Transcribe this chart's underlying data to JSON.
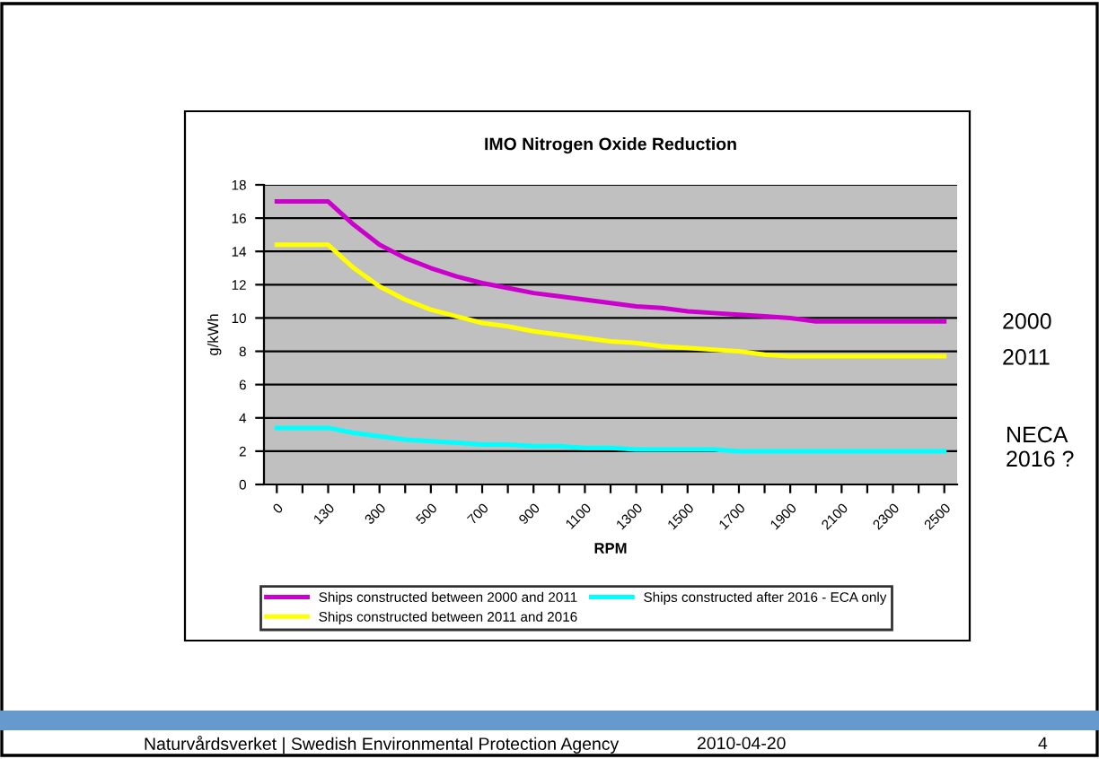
{
  "chart_data": {
    "type": "line",
    "title": "IMO Nitrogen Oxide Reduction",
    "xlabel": "RPM",
    "ylabel": "g/kWh",
    "categories": [
      "0",
      null,
      "130",
      null,
      "300",
      null,
      "500",
      null,
      "700",
      null,
      "900",
      null,
      "1100",
      null,
      "1300",
      null,
      "1500",
      null,
      "1700",
      null,
      "1900",
      null,
      "2100",
      null,
      "2300",
      null,
      "2500"
    ],
    "series": [
      {
        "name": "Ships constructed between 2000 and 2011",
        "color": "#cc00cc",
        "values": [
          17.0,
          17.0,
          17.0,
          15.6,
          14.4,
          13.6,
          13.0,
          12.5,
          12.1,
          11.8,
          11.5,
          11.3,
          11.1,
          10.9,
          10.7,
          10.6,
          10.4,
          10.3,
          10.2,
          10.1,
          10.0,
          9.8,
          9.8,
          9.8,
          9.8,
          9.8,
          9.8
        ]
      },
      {
        "name": "Ships constructed between 2011 and 2016",
        "color": "#ffff00",
        "values": [
          14.4,
          14.4,
          14.4,
          13.0,
          11.9,
          11.1,
          10.5,
          10.1,
          9.7,
          9.5,
          9.2,
          9.0,
          8.8,
          8.6,
          8.5,
          8.3,
          8.2,
          8.1,
          8.0,
          7.8,
          7.7,
          7.7,
          7.7,
          7.7,
          7.7,
          7.7,
          7.7
        ]
      },
      {
        "name": "Ships constructed after 2016 - ECA only",
        "color": "#00ffff",
        "values": [
          3.4,
          3.4,
          3.4,
          3.1,
          2.9,
          2.7,
          2.6,
          2.5,
          2.4,
          2.4,
          2.3,
          2.3,
          2.2,
          2.2,
          2.1,
          2.1,
          2.1,
          2.1,
          2.0,
          2.0,
          2.0,
          2.0,
          2.0,
          2.0,
          2.0,
          2.0,
          2.0
        ]
      }
    ],
    "ylim": [
      0,
      18
    ],
    "yticks": [
      0,
      2,
      4,
      6,
      8,
      10,
      12,
      14,
      16,
      18
    ],
    "grid": "y",
    "legend": "bottom",
    "marker": "none",
    "line_style": "solid",
    "annotations": [
      "2000",
      "2011",
      "NECA\n2016 ?",
      "Naturvårdsverket | Swedish Environmental Protection Agency",
      "2010-04-20",
      "4"
    ]
  }
}
